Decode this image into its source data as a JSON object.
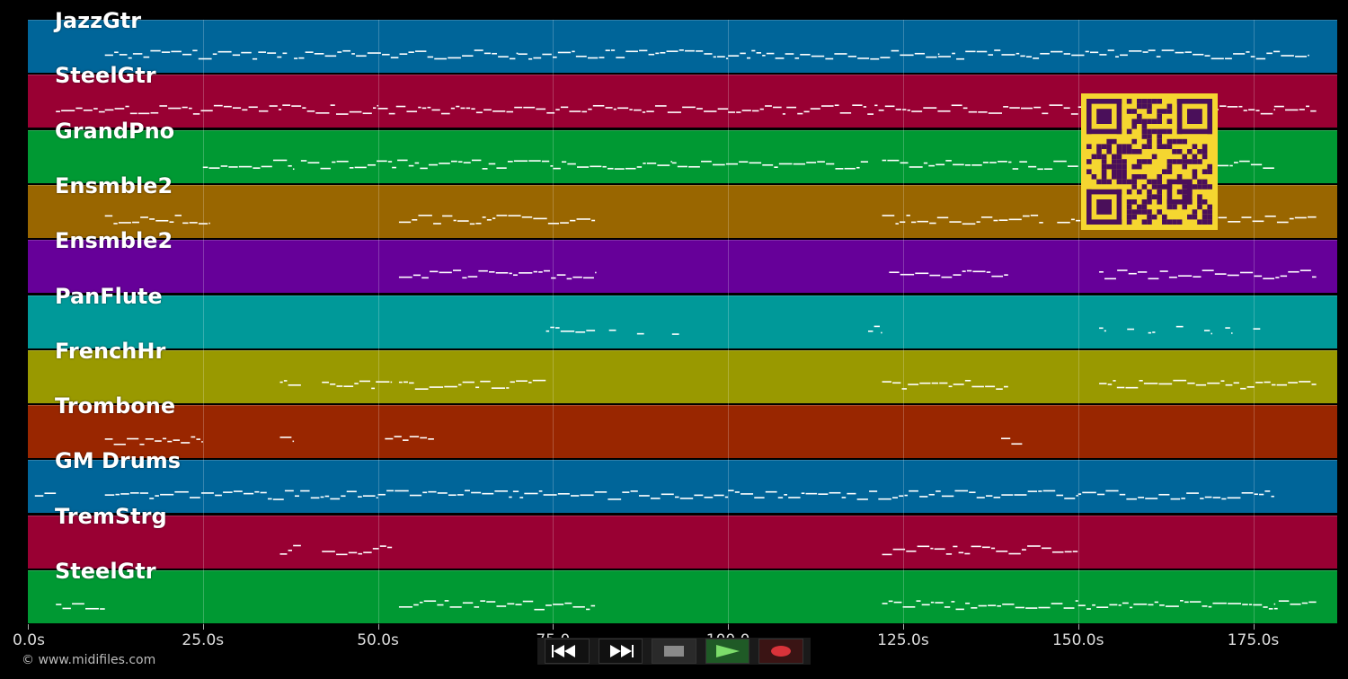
{
  "app": {
    "time_axis": {
      "unit": "s",
      "range": [
        0,
        187
      ]
    },
    "tick_labels": [
      "0.0s",
      "25.0s",
      "50.0s",
      "75.0",
      "100.0",
      "125.0s",
      "150.0s",
      "175.0s"
    ],
    "tick_values": [
      0,
      25,
      50,
      75,
      100,
      125,
      150,
      175
    ],
    "copyright": "© www.midifiles.com"
  },
  "tracks": [
    {
      "name": "JazzGtr",
      "color": "#006599"
    },
    {
      "name": "SteelGtr",
      "color": "#990033"
    },
    {
      "name": "GrandPno",
      "color": "#009933"
    },
    {
      "name": "Ensmble2",
      "color": "#996600"
    },
    {
      "name": "Ensmble2",
      "color": "#660099"
    },
    {
      "name": "PanFlute",
      "color": "#009999"
    },
    {
      "name": "FrenchHr",
      "color": "#999900"
    },
    {
      "name": "Trombone",
      "color": "#992600"
    },
    {
      "name": "GM Drums",
      "color": "#006599"
    },
    {
      "name": "TremStrg",
      "color": "#990033"
    },
    {
      "name": "SteelGtr",
      "color": "#009933"
    }
  ],
  "notes": [
    [
      [
        11,
        37
      ],
      [
        38,
        70
      ],
      [
        70,
        100
      ],
      [
        100,
        130
      ],
      [
        130,
        160
      ],
      [
        160,
        183
      ]
    ],
    [
      [
        4,
        11
      ],
      [
        11,
        50
      ],
      [
        50,
        100
      ],
      [
        100,
        150
      ],
      [
        150,
        178
      ],
      [
        178,
        184
      ]
    ],
    [
      [
        25,
        38
      ],
      [
        39,
        52
      ],
      [
        52,
        75
      ],
      [
        75,
        92
      ],
      [
        92,
        120
      ],
      [
        122,
        150
      ],
      [
        151,
        178
      ]
    ],
    [
      [
        11,
        26
      ],
      [
        53,
        81
      ],
      [
        122,
        145
      ],
      [
        147,
        168
      ],
      [
        170,
        184
      ]
    ],
    [
      [
        53,
        81
      ],
      [
        123,
        140
      ],
      [
        153,
        184
      ]
    ],
    [
      [
        74,
        81
      ],
      [
        83,
        84
      ],
      [
        87,
        88
      ],
      [
        92,
        93
      ],
      [
        120,
        122
      ],
      [
        153,
        154
      ],
      [
        157,
        158
      ],
      [
        160,
        161
      ],
      [
        164,
        165
      ],
      [
        168,
        169
      ],
      [
        171,
        172
      ],
      [
        175,
        176
      ]
    ],
    [
      [
        36,
        39
      ],
      [
        42,
        52
      ],
      [
        53,
        74
      ],
      [
        122,
        140
      ],
      [
        153,
        184
      ]
    ],
    [
      [
        11,
        25
      ],
      [
        36,
        38
      ],
      [
        51,
        58
      ],
      [
        139,
        142
      ]
    ],
    [
      [
        1,
        4
      ],
      [
        11,
        50
      ],
      [
        50,
        100
      ],
      [
        100,
        150
      ],
      [
        150,
        178
      ]
    ],
    [
      [
        36,
        39
      ],
      [
        42,
        52
      ],
      [
        122,
        150
      ]
    ],
    [
      [
        4,
        11
      ],
      [
        53,
        81
      ],
      [
        122,
        150
      ],
      [
        150,
        178
      ],
      [
        178,
        184
      ]
    ]
  ],
  "transport": {
    "buttons": [
      {
        "name": "rewind",
        "icon": "rewind-icon"
      },
      {
        "name": "fast-forward",
        "icon": "fast-forward-icon"
      },
      {
        "name": "stop",
        "icon": "stop-icon"
      },
      {
        "name": "play",
        "icon": "play-icon"
      },
      {
        "name": "record",
        "icon": "record-icon"
      }
    ],
    "colors": {
      "play": "#2e8b3a",
      "record": "#d8333a",
      "stop": "#888888"
    }
  },
  "qr": {
    "color_fg": "#4a0f5a",
    "color_bg": "#f5d630"
  }
}
